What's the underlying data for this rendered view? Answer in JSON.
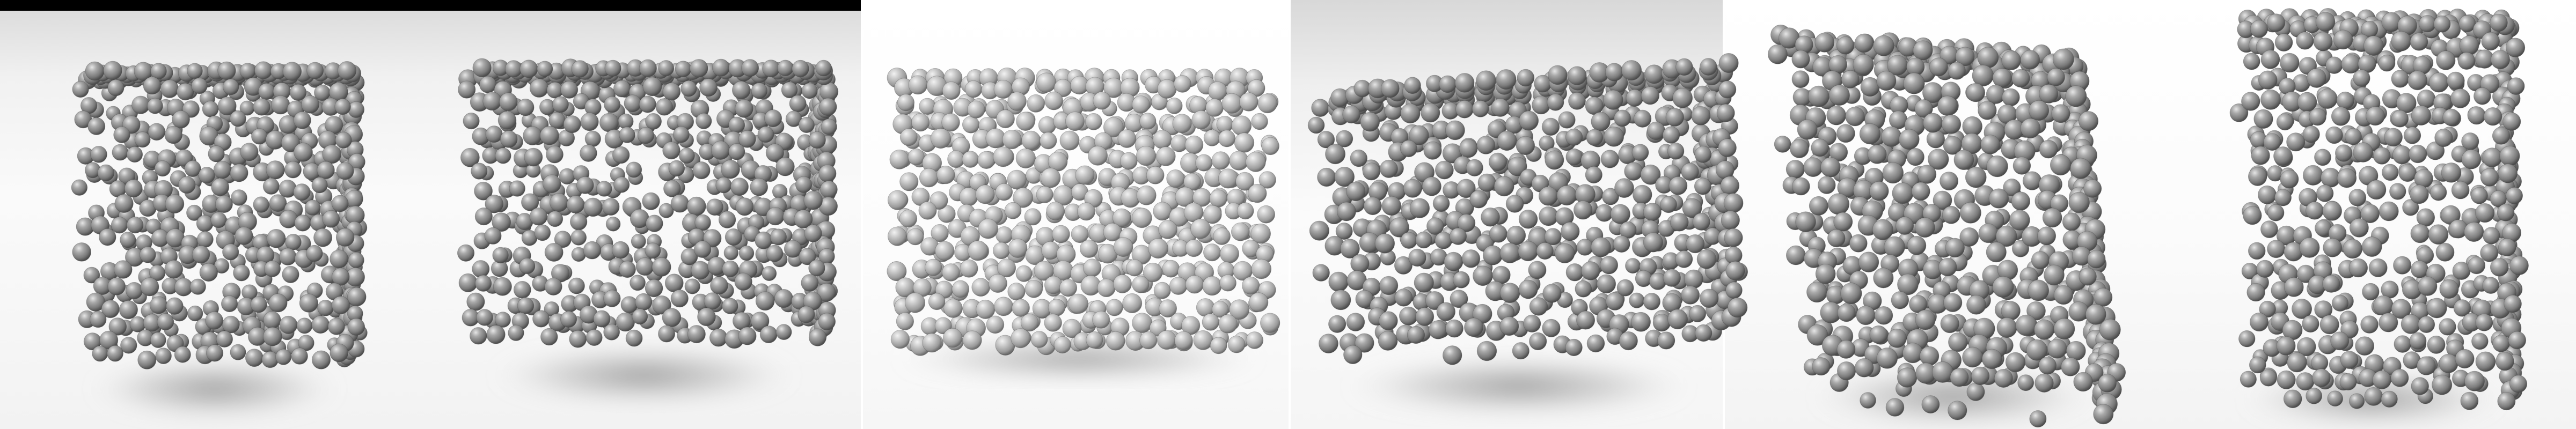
{
  "figure": {
    "panel_count": 4,
    "object_count": 6,
    "colors": {
      "sphere": "#8f8f8f",
      "sphere_light": "#bdbdbd",
      "sphere_dark": "#5a5a5a",
      "shadow": "#9a9a9a",
      "top_bar": "#000000"
    }
  }
}
